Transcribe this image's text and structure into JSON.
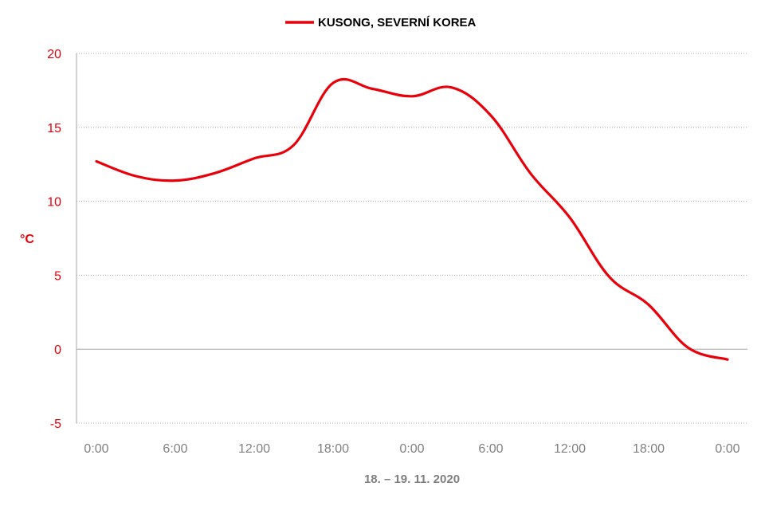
{
  "chart_data": {
    "type": "line",
    "legend_position": "top-center",
    "grid": true,
    "ylabel": "°C",
    "xlabel": "18. – 19. 11. 2020",
    "ylim": [
      -5,
      20
    ],
    "yticks": [
      "20",
      "15",
      "10",
      "5",
      "0",
      "-5"
    ],
    "xticks": [
      "0:00",
      "6:00",
      "12:00",
      "18:00",
      "0:00",
      "6:00",
      "12:00",
      "18:00",
      "0:00"
    ],
    "series": [
      {
        "name": "KUSONG, SEVERNÍ KOREA",
        "color": "#e8000b",
        "x_hours": [
          0,
          3,
          6,
          9,
          12,
          15,
          18,
          21,
          24,
          27,
          30,
          33,
          36,
          39,
          42,
          45,
          48
        ],
        "values": [
          12.7,
          11.7,
          11.4,
          11.9,
          12.9,
          13.8,
          18.0,
          17.6,
          17.1,
          17.7,
          15.8,
          11.9,
          8.9,
          4.9,
          3.0,
          0.1,
          -0.7
        ]
      }
    ]
  },
  "colors": {
    "axis_text": "#e8000b",
    "tick_text": "#7f7f7f",
    "grid": "#a6a6a6",
    "zero_line": "#a6a6a6"
  }
}
